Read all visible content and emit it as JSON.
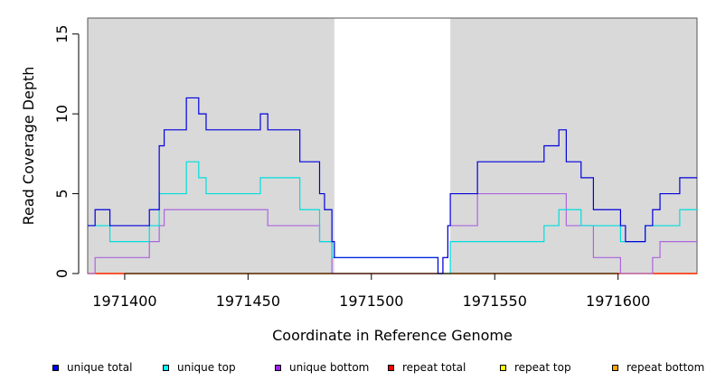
{
  "chart_data": {
    "type": "line",
    "step": true,
    "xlabel": "Coordinate in Reference Genome",
    "ylabel": "Read Coverage Depth",
    "xlim": [
      1971385,
      1971632
    ],
    "ylim": [
      0,
      16
    ],
    "xticks": [
      1971400,
      1971450,
      1971500,
      1971550,
      1971600
    ],
    "yticks": [
      0,
      5,
      10,
      15
    ],
    "shaded_regions": [
      [
        1971385,
        1971485
      ],
      [
        1971532,
        1971632
      ]
    ],
    "shade_color": "#d9d9d9",
    "series": [
      {
        "name": "unique total",
        "color": "#0000dd",
        "points": [
          [
            1971385,
            3
          ],
          [
            1971388,
            4
          ],
          [
            1971394,
            3
          ],
          [
            1971410,
            4
          ],
          [
            1971414,
            8
          ],
          [
            1971416,
            9
          ],
          [
            1971425,
            11
          ],
          [
            1971430,
            10
          ],
          [
            1971433,
            9
          ],
          [
            1971455,
            10
          ],
          [
            1971458,
            9
          ],
          [
            1971471,
            7
          ],
          [
            1971479,
            5
          ],
          [
            1971481,
            4
          ],
          [
            1971484,
            2
          ],
          [
            1971485,
            1
          ],
          [
            1971527,
            0
          ],
          [
            1971529,
            1
          ],
          [
            1971531,
            3
          ],
          [
            1971532,
            5
          ],
          [
            1971543,
            7
          ],
          [
            1971570,
            8
          ],
          [
            1971576,
            9
          ],
          [
            1971579,
            7
          ],
          [
            1971585,
            6
          ],
          [
            1971590,
            4
          ],
          [
            1971601,
            3
          ],
          [
            1971603,
            2
          ],
          [
            1971611,
            3
          ],
          [
            1971614,
            4
          ],
          [
            1971617,
            5
          ],
          [
            1971625,
            6
          ],
          [
            1971632,
            6
          ]
        ]
      },
      {
        "name": "unique top",
        "color": "#00dddd",
        "points": [
          [
            1971385,
            3
          ],
          [
            1971394,
            2
          ],
          [
            1971410,
            3
          ],
          [
            1971414,
            5
          ],
          [
            1971425,
            7
          ],
          [
            1971430,
            6
          ],
          [
            1971433,
            5
          ],
          [
            1971455,
            6
          ],
          [
            1971471,
            4
          ],
          [
            1971479,
            2
          ],
          [
            1971484,
            1
          ],
          [
            1971527,
            0
          ],
          [
            1971532,
            2
          ],
          [
            1971570,
            3
          ],
          [
            1971576,
            4
          ],
          [
            1971585,
            3
          ],
          [
            1971601,
            2
          ],
          [
            1971611,
            3
          ],
          [
            1971625,
            4
          ],
          [
            1971632,
            4
          ]
        ]
      },
      {
        "name": "unique bottom",
        "color": "#aa66dd",
        "points": [
          [
            1971385,
            0
          ],
          [
            1971388,
            1
          ],
          [
            1971410,
            2
          ],
          [
            1971414,
            3
          ],
          [
            1971416,
            4
          ],
          [
            1971458,
            3
          ],
          [
            1971479,
            2
          ],
          [
            1971484,
            0
          ],
          [
            1971527,
            0
          ],
          [
            1971529,
            1
          ],
          [
            1971531,
            3
          ],
          [
            1971543,
            5
          ],
          [
            1971579,
            3
          ],
          [
            1971590,
            1
          ],
          [
            1971601,
            0
          ],
          [
            1971614,
            1
          ],
          [
            1971617,
            2
          ],
          [
            1971632,
            2
          ]
        ]
      },
      {
        "name": "repeat total",
        "color": "#ff0000",
        "points": [
          [
            1971385,
            0
          ],
          [
            1971632,
            0
          ]
        ]
      },
      {
        "name": "repeat top",
        "color": "#ffff00",
        "points": [
          [
            1971385,
            0
          ],
          [
            1971632,
            0
          ]
        ]
      },
      {
        "name": "repeat bottom",
        "color": "#ffa500",
        "points": [
          [
            1971385,
            0
          ],
          [
            1971632,
            0
          ]
        ]
      }
    ],
    "legend": {
      "placement": "bottom",
      "items": [
        {
          "label": "unique total",
          "color": "#0000ff"
        },
        {
          "label": "unique top",
          "color": "#00ffff"
        },
        {
          "label": "unique bottom",
          "color": "#a020f0"
        },
        {
          "label": "repeat total",
          "color": "#ff0000"
        },
        {
          "label": "repeat top",
          "color": "#ffff00"
        },
        {
          "label": "repeat bottom",
          "color": "#ffa500"
        }
      ]
    }
  }
}
